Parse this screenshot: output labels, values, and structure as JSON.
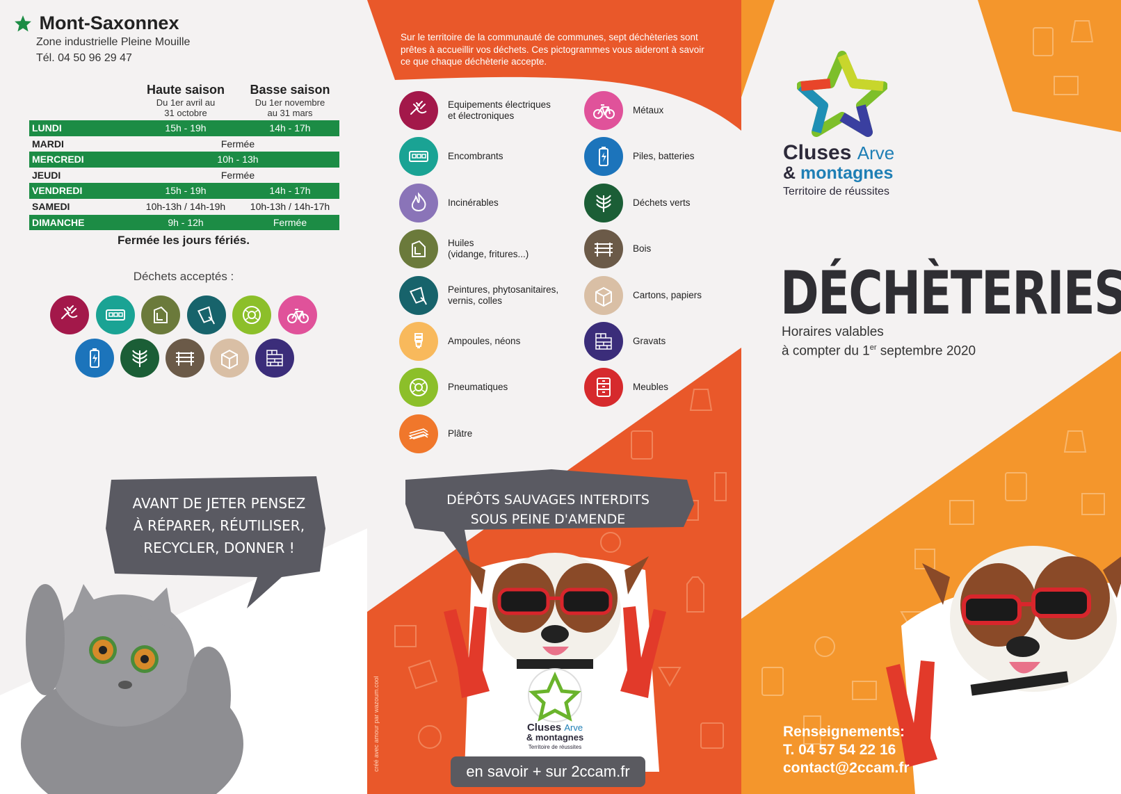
{
  "site": {
    "name": "Mont-Saxonnex",
    "address": "Zone industrielle Pleine Mouille",
    "phone": "Tél. 04 50 96 29 47"
  },
  "schedule": {
    "high_title": "Haute saison",
    "high_sub1": "Du 1er avril au",
    "high_sub2": "31 octobre",
    "low_title": "Basse saison",
    "low_sub1": "Du 1er novembre",
    "low_sub2": "au 31 mars",
    "rows": [
      {
        "day": "LUNDI",
        "high": "15h - 19h",
        "low": "14h - 17h"
      },
      {
        "day": "MARDI",
        "both": "Fermée"
      },
      {
        "day": "MERCREDI",
        "both": "10h - 13h"
      },
      {
        "day": "JEUDI",
        "both": "Fermée"
      },
      {
        "day": "VENDREDI",
        "high": "15h - 19h",
        "low": "14h - 17h"
      },
      {
        "day": "SAMEDI",
        "high": "10h-13h / 14h-19h",
        "low": "10h-13h / 14h-17h"
      },
      {
        "day": "DIMANCHE",
        "high": "9h - 12h",
        "low": "Fermée"
      }
    ],
    "closed_note": "Fermée les jours fériés."
  },
  "accepted_title": "Déchets acceptés :",
  "bubble_left": [
    "Avant de jeter pensez",
    "à réparer, réutiliser,",
    "recycler, donner !"
  ],
  "intro": "Sur le territoire de la communauté de communes, sept déchèteries sont prêtes à accueillir vos déchets. Ces pictogrammes vous aideront à savoir ce que chaque déchèterie accepte.",
  "legend_left": [
    {
      "label": "Equipements électriques\net électroniques",
      "color": "#a3184a",
      "icon": "plug-icon"
    },
    {
      "label": "Encombrants",
      "color": "#1aa394",
      "icon": "crate-icon"
    },
    {
      "label": "Incinérables",
      "color": "#8a74b8",
      "icon": "flame-icon"
    },
    {
      "label": "Huiles\n(vidange, fritures...)",
      "color": "#6b7a3b",
      "icon": "oil-can-icon"
    },
    {
      "label": "Peintures, phytosanitaires,\nvernis, colles",
      "color": "#17636b",
      "icon": "paint-bucket-icon"
    },
    {
      "label": "Ampoules, néons",
      "color": "#f8b95c",
      "icon": "bulb-icon"
    },
    {
      "label": "Pneumatiques",
      "color": "#8cbf2a",
      "icon": "tire-icon"
    },
    {
      "label": "Plâtre",
      "color": "#f0772b",
      "icon": "plaster-icon"
    }
  ],
  "legend_right": [
    {
      "label": "Métaux",
      "color": "#e0529a",
      "icon": "bike-icon"
    },
    {
      "label": "Piles, batteries",
      "color": "#1c74bb",
      "icon": "battery-icon"
    },
    {
      "label": "Déchets verts",
      "color": "#1b5e36",
      "icon": "plant-icon"
    },
    {
      "label": "Bois",
      "color": "#6b5a48",
      "icon": "bench-icon"
    },
    {
      "label": "Cartons, papiers",
      "color": "#d9bfa5",
      "icon": "box-icon"
    },
    {
      "label": "Gravats",
      "color": "#3b2d7a",
      "icon": "bricks-icon"
    },
    {
      "label": "Meubles",
      "color": "#d62a2d",
      "icon": "drawer-icon"
    }
  ],
  "accepted_icons": [
    "plug-icon",
    "crate-icon",
    "oil-can-icon",
    "paint-bucket-icon",
    "tire-icon",
    "bike-icon",
    "battery-icon",
    "plant-icon",
    "bench-icon",
    "box-icon",
    "bricks-icon"
  ],
  "bubble_mid": [
    "Dépôts sauvages interdits",
    "sous peine d'amende"
  ],
  "web": "en savoir + sur 2ccam.fr",
  "credit": "créé avec amour par wazoum.cool",
  "brand": {
    "line1a": "Cluses",
    "line1b": "Arve",
    "line2a": "&",
    "line2b": "montagnes",
    "tagline": "Territoire de réussites"
  },
  "small_brand": {
    "line1a": "Cluses",
    "line1b": "Arve",
    "line2": "& montagnes",
    "tagline": "Territoire de réussites"
  },
  "title": "DÉCHÈTERIES",
  "subtitle1": "Horaires valables",
  "subtitle2a": "à compter du 1",
  "subtitle2sup": "er",
  "subtitle2b": " septembre 2020",
  "contact": {
    "label": "Renseignements:",
    "phone": "T. 04 57 54 22 16",
    "email": "contact@2ccam.fr"
  },
  "colors": {
    "orange_dark": "#e9582a",
    "orange_light": "#f4962c",
    "green": "#1c8c45",
    "bubble": "#5a5a62"
  }
}
